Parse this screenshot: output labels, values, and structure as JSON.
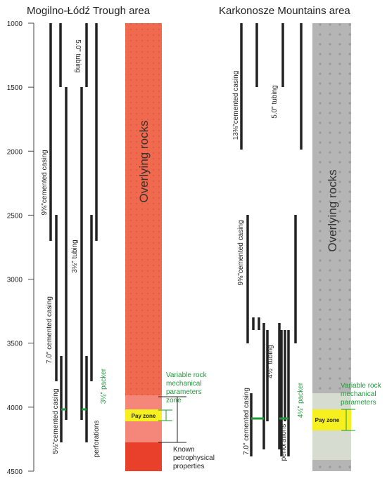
{
  "left_panel": {
    "title": "Mogilno-Łódź Trough area",
    "depth_ticks": [
      "1000",
      "1500",
      "2000",
      "2500",
      "3000",
      "3500",
      "4000",
      "4500"
    ],
    "tubing_top": "5.0\" tubing",
    "casing_outer": "9⅝\"cemented casing",
    "tubing_inner": "3½\" tubing",
    "casing_middle": "7.0\" cemented casing",
    "casing_inner": "5½\"cemented casing",
    "perforations": "perforations",
    "packer": "3½\" packer",
    "rock_column": "Overlying rocks",
    "pay_zone": "Pay zone",
    "variable_zone": [
      "Variable rock",
      "mechanical",
      "parameters",
      "zone"
    ],
    "known_zone": [
      "Known",
      "petrophysical",
      "properties"
    ]
  },
  "right_panel": {
    "title": "Karkonosze Mountains area",
    "casing_outer": "13⅜\"cemented casing",
    "tubing_top": "5.0\" tubing",
    "casing_middle": "9⅝\"cemented casing",
    "tubing_inner": "4½\" tubing",
    "casing_inner": "7.0\" cemented casing",
    "perforations": "perforations",
    "packer": "4½\" packer",
    "rock_column": "Overlying rocks",
    "pay_zone": "Pay zone",
    "variable_zone": [
      "Variable rock",
      "mechanical",
      "parameters"
    ]
  }
}
